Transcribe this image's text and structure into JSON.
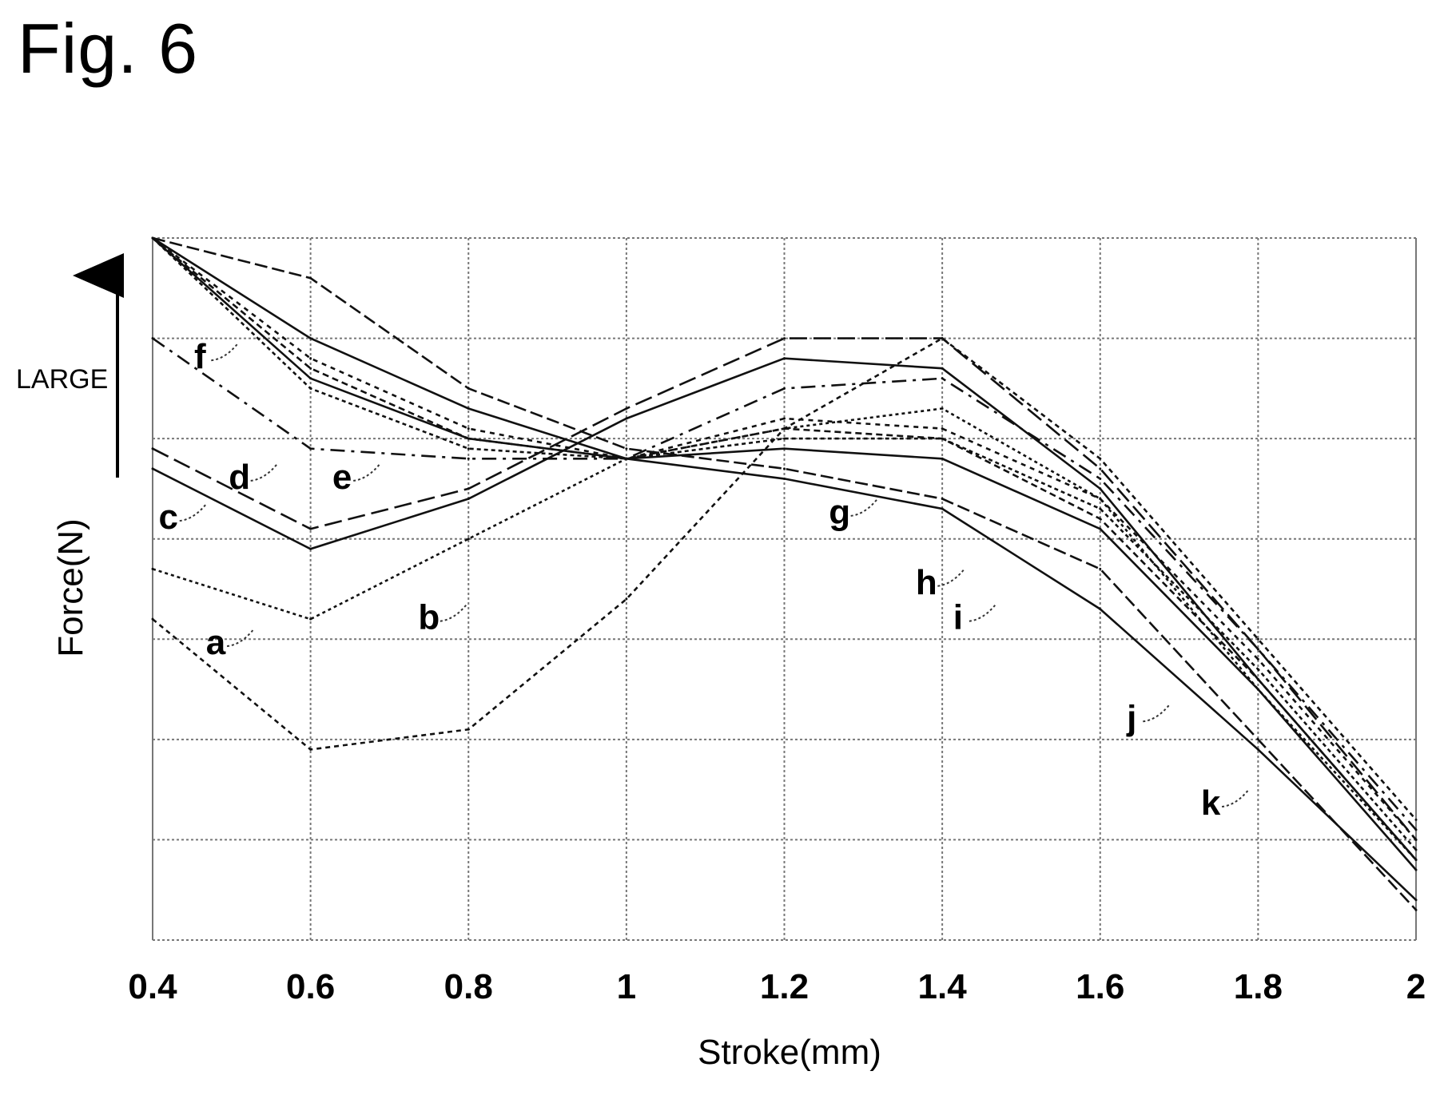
{
  "figure_title": "Fig. 6",
  "chart_data": {
    "type": "line",
    "title": "",
    "xlabel": "Stroke(mm)",
    "ylabel": "Force(N)",
    "y_indicator_label": "LARGE",
    "xlim": [
      0.4,
      2
    ],
    "ylim": [
      0,
      7
    ],
    "x_ticks": [
      "0.4",
      "0.6",
      "0.8",
      "1",
      "1.2",
      "1.4",
      "1.6",
      "1.8",
      "2"
    ],
    "grid": true,
    "x": [
      0.4,
      0.6,
      0.8,
      1.0,
      1.2,
      1.4,
      1.6,
      1.8,
      2.0
    ],
    "series": [
      {
        "name": "a",
        "values": [
          3.2,
          1.9,
          2.1,
          3.4,
          5.1,
          6.0,
          4.8,
          3.0,
          1.2
        ]
      },
      {
        "name": "b",
        "values": [
          3.7,
          3.2,
          4.0,
          4.8,
          5.1,
          5.3,
          4.4,
          2.5,
          0.8
        ]
      },
      {
        "name": "c",
        "values": [
          4.7,
          3.9,
          4.4,
          5.2,
          5.8,
          5.7,
          4.5,
          2.6,
          0.8
        ]
      },
      {
        "name": "d",
        "values": [
          4.9,
          4.1,
          4.5,
          5.3,
          6.0,
          6.0,
          4.7,
          2.9,
          1.0
        ]
      },
      {
        "name": "e",
        "values": [
          6.0,
          4.9,
          4.8,
          4.8,
          5.5,
          5.6,
          4.6,
          2.9,
          1.1
        ]
      },
      {
        "name": "f",
        "values": [
          7.0,
          5.5,
          4.9,
          4.8,
          5.0,
          5.0,
          4.3,
          2.7,
          0.9
        ]
      },
      {
        "name": "g",
        "values": [
          7.0,
          5.6,
          5.0,
          4.8,
          4.9,
          4.8,
          4.1,
          2.5,
          0.7
        ]
      },
      {
        "name": "h",
        "values": [
          7.0,
          5.7,
          5.0,
          4.8,
          5.1,
          5.0,
          4.2,
          2.6,
          0.8
        ]
      },
      {
        "name": "i",
        "values": [
          7.0,
          5.8,
          5.1,
          4.8,
          5.2,
          5.1,
          4.4,
          2.8,
          1.0
        ]
      },
      {
        "name": "j",
        "values": [
          7.0,
          6.0,
          5.3,
          4.8,
          4.6,
          4.3,
          3.3,
          1.9,
          0.4
        ]
      },
      {
        "name": "k",
        "values": [
          7.0,
          6.6,
          5.5,
          4.9,
          4.7,
          4.4,
          3.7,
          2.0,
          0.3
        ]
      }
    ],
    "series_label_positions": {
      "a": [
        0.48,
        2.85
      ],
      "b": [
        0.75,
        3.1
      ],
      "c": [
        0.42,
        4.1
      ],
      "d": [
        0.51,
        4.5
      ],
      "e": [
        0.64,
        4.5
      ],
      "f": [
        0.46,
        5.7
      ],
      "g": [
        1.27,
        4.15
      ],
      "h": [
        1.38,
        3.45
      ],
      "i": [
        1.42,
        3.1
      ],
      "j": [
        1.64,
        2.1
      ],
      "k": [
        1.74,
        1.25
      ]
    }
  }
}
